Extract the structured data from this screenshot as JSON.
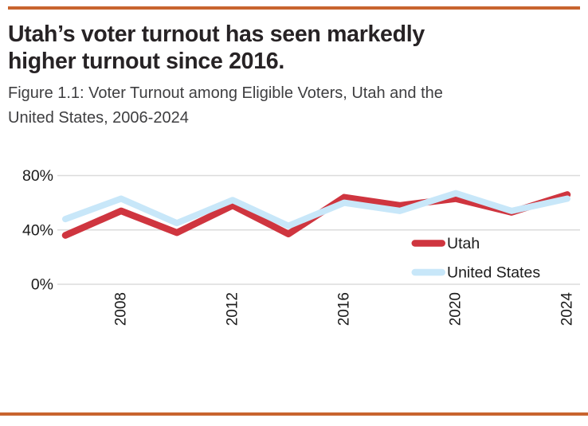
{
  "header": {
    "title_lines": [
      "Utah’s voter turnout has seen markedly",
      "higher turnout since 2016."
    ],
    "subtitle_lines": [
      "Figure 1.1: Voter Turnout among Eligible Voters, Utah and the",
      "United States, 2006-2024"
    ]
  },
  "accent": {
    "divider_orange": "#C8642F",
    "grid_gray": "#DBDBDB",
    "axis_text": "#1A1A1A"
  },
  "chart_data": {
    "type": "line",
    "title": "Voter Turnout among Eligible Voters, Utah and the United States, 2006-2024",
    "xlabel": "",
    "ylabel": "",
    "x": [
      2006,
      2008,
      2010,
      2012,
      2014,
      2016,
      2018,
      2020,
      2022,
      2024
    ],
    "series": [
      {
        "name": "Utah",
        "color": "#CF353F",
        "values": [
          36,
          54,
          38,
          58,
          37,
          64,
          58,
          63,
          53,
          66
        ]
      },
      {
        "name": "United States",
        "color": "#C8E7F9",
        "values": [
          48,
          63,
          45,
          62,
          43,
          60,
          54,
          67,
          54,
          63
        ]
      }
    ],
    "ylim": [
      0,
      80
    ],
    "yticks": [
      {
        "value": 80,
        "label": "80%"
      },
      {
        "value": 40,
        "label": "40%"
      },
      {
        "value": 0,
        "label": "0%"
      }
    ],
    "xticks": [
      {
        "value": 2008,
        "label": "2008"
      },
      {
        "value": 2012,
        "label": "2012"
      },
      {
        "value": 2016,
        "label": "2016"
      },
      {
        "value": 2020,
        "label": "2020"
      },
      {
        "value": 2024,
        "label": "2024"
      }
    ],
    "grid": "horizontal-only",
    "legend_position": "inside-right",
    "x_tick_rotation": -90
  }
}
